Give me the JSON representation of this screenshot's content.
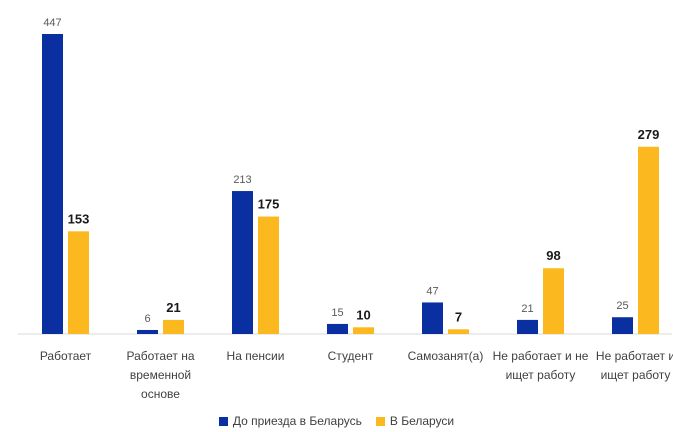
{
  "chart_data": {
    "type": "bar",
    "categories": [
      [
        "Работает"
      ],
      [
        "Работает на",
        "временной",
        "основе"
      ],
      [
        "На пенсии"
      ],
      [
        "Студент"
      ],
      [
        "Самозанят(а)"
      ],
      [
        "Не работает и не",
        "ищет работу"
      ],
      [
        "Не работает и",
        "ищет работу"
      ]
    ],
    "series": [
      {
        "name": "До приезда в Беларусь",
        "color": "#0A2FA0",
        "values": [
          447,
          6,
          213,
          15,
          47,
          21,
          25
        ]
      },
      {
        "name": "В Беларуси",
        "color": "#FBB91F",
        "values": [
          153,
          21,
          175,
          10,
          7,
          98,
          279
        ]
      }
    ],
    "ylim": [
      0,
      447
    ],
    "grid": false,
    "legend_position": "bottom"
  }
}
